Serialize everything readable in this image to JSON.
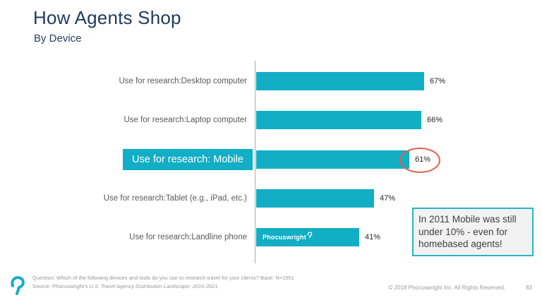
{
  "header": {
    "title": "How Agents Shop",
    "subtitle": "By Device"
  },
  "chart_data": {
    "type": "bar",
    "orientation": "horizontal",
    "title": "How Agents Shop",
    "subtitle": "By Device",
    "categories": [
      "Use for research:Desktop computer",
      "Use for research:Laptop computer",
      "Use for research: Mobile",
      "Use for research:Tablet (e.g., iPad, etc.)",
      "Use for research:Landline phone"
    ],
    "values": [
      67,
      66,
      61,
      47,
      41
    ],
    "value_labels": [
      "67%",
      "66%",
      "61%",
      "47%",
      "41%"
    ],
    "xlim": [
      0,
      100
    ],
    "unit": "percent",
    "grid": "off",
    "legend": "none",
    "highlight_index": 2,
    "circled_index": 2,
    "watermark_index": 4,
    "bar_color": "#12AEC5",
    "highlight_label_bg": "#12AEC5",
    "circle_color": "#E2604B"
  },
  "callout": {
    "text": "In 2011 Mobile was still under 10% - even for homebased agents!"
  },
  "watermark": {
    "text": "Phocuswright"
  },
  "footer": {
    "question": "Question: Which of the following devices and tools do you use to research travel for your clients? Base: N=1551",
    "source_prefix": "Source: Phocuswright’s ",
    "source_title": "U.S. Travel Agency Distribution Landscape: 2016-2021",
    "copyright": "© 2018 Phocuswright Inc. All Rights Reserved.",
    "page_number": "83"
  },
  "colors": {
    "accent_navy": "#1F3A5F",
    "bar_teal": "#12AEC5",
    "circle_red": "#E2604B",
    "callout_border": "#2AB4C7"
  }
}
